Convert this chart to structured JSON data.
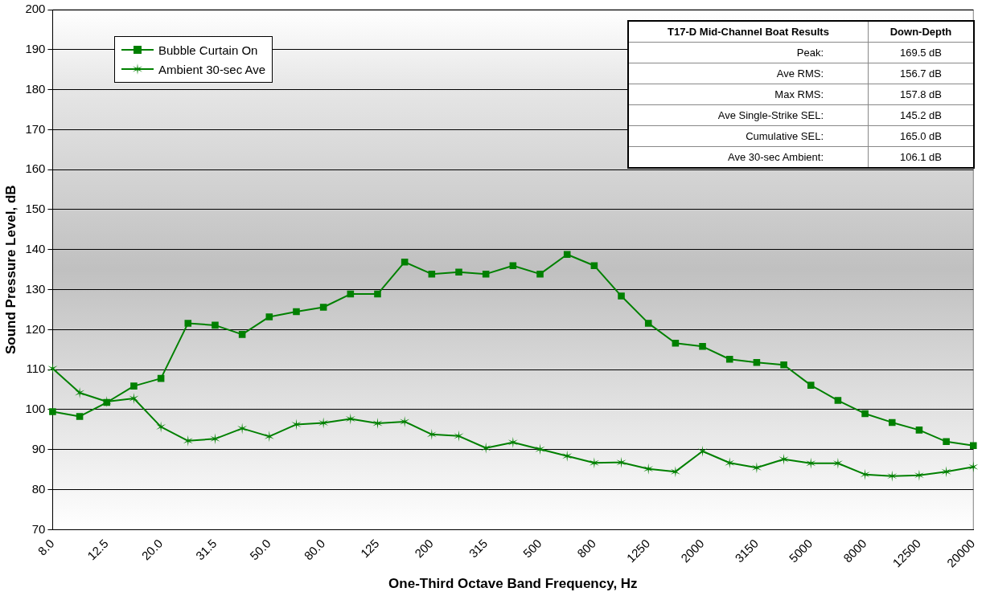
{
  "chart_data": {
    "type": "line",
    "xlabel": "One-Third Octave Band Frequency, Hz",
    "ylabel": "Sound Pressure Level, dB",
    "categories": [
      "8.0",
      null,
      "12.5",
      null,
      "20.0",
      null,
      "31.5",
      null,
      "50.0",
      null,
      "80.0",
      null,
      "125",
      null,
      "200",
      null,
      "315",
      null,
      "500",
      null,
      "800",
      null,
      "1250",
      null,
      "2000",
      null,
      "3150",
      null,
      "5000",
      null,
      "8000",
      null,
      "12500",
      null,
      "20000"
    ],
    "series": [
      {
        "name": "Bubble Curtain On",
        "color": "#008000",
        "marker": "square",
        "values": [
          99.5,
          98.3,
          101.8,
          105.9,
          107.8,
          121.6,
          121.1,
          118.8,
          123.2,
          124.5,
          125.6,
          128.9,
          128.9,
          136.9,
          133.9,
          134.4,
          133.9,
          136.0,
          133.9,
          138.8,
          136.0,
          128.4,
          121.6,
          116.6,
          115.8,
          112.6,
          111.8,
          111.2,
          106.1,
          102.3,
          99.0,
          96.8,
          94.9,
          92.0,
          91.0
        ]
      },
      {
        "name": "Ambient 30-sec Ave",
        "color": "#008000",
        "marker": "cross",
        "values": [
          110.3,
          104.2,
          102.0,
          102.8,
          95.7,
          92.2,
          92.7,
          95.3,
          93.3,
          96.3,
          96.7,
          97.7,
          96.6,
          97.0,
          93.8,
          93.4,
          90.4,
          91.8,
          90.1,
          88.4,
          86.7,
          86.8,
          85.2,
          84.5,
          89.6,
          86.7,
          85.5,
          87.6,
          86.6,
          86.6,
          83.8,
          83.4,
          83.6,
          84.5,
          85.7
        ]
      }
    ],
    "ylim": [
      70,
      200
    ],
    "yticks": [
      70,
      80,
      90,
      100,
      110,
      120,
      130,
      140,
      150,
      160,
      170,
      180,
      190,
      200
    ],
    "grid": "y",
    "legend": "top left",
    "annotations": [
      "T17-D Mid-Channel Boat Results",
      "Down-Depth",
      "Peak:",
      "169.5 dB",
      "Ave RMS:",
      "156.7 dB",
      "Max RMS:",
      "157.8 dB",
      "Ave Single-Strike SEL:",
      "145.2 dB",
      "Cumulative SEL:",
      "165.0 dB",
      "Ave 30-sec Ambient:",
      "106.1 dB"
    ]
  }
}
